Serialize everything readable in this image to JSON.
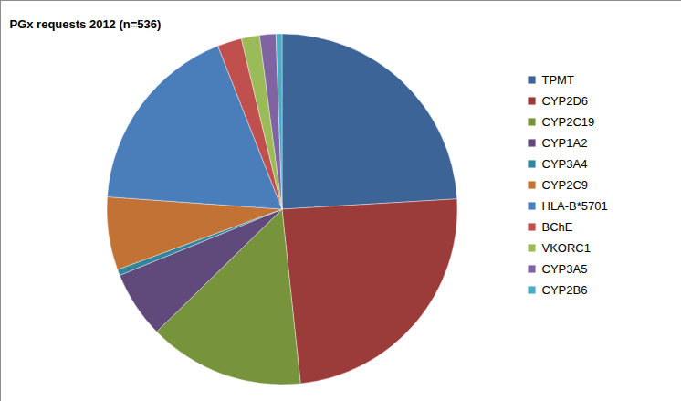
{
  "chart_data": {
    "type": "pie",
    "title": "PGx requests 2012 (n=536)",
    "categories": [
      "TPMT",
      "CYP2D6",
      "CYP2C19",
      "CYP1A2",
      "CYP3A4",
      "CYP2C9",
      "HLA-B*5701",
      "BChE",
      "VKORC1",
      "CYP3A5",
      "CYP2B6"
    ],
    "values": [
      129,
      130,
      77,
      33,
      3,
      36,
      96,
      12,
      9,
      8,
      3
    ],
    "colors": [
      "#3C6496",
      "#9B3B3A",
      "#77933C",
      "#604A7B",
      "#31859C",
      "#C27234",
      "#4A7EBB",
      "#C0504D",
      "#9BBB59",
      "#8064A2",
      "#4BACC6"
    ],
    "legend": "right"
  }
}
